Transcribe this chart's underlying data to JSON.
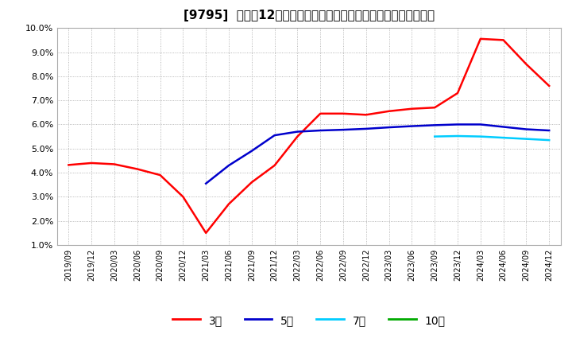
{
  "title": "[9795]  売上高12か月移動合計の対前年同期増減率の平均値の推移",
  "ylim": [
    0.01,
    0.1
  ],
  "yticks": [
    0.01,
    0.02,
    0.03,
    0.04,
    0.05,
    0.06,
    0.07,
    0.08,
    0.09,
    0.1
  ],
  "ytick_labels": [
    "1.0%",
    "2.0%",
    "3.0%",
    "4.0%",
    "5.0%",
    "6.0%",
    "7.0%",
    "8.0%",
    "9.0%",
    "10.0%"
  ],
  "x_labels": [
    "2019/09",
    "2019/12",
    "2020/03",
    "2020/06",
    "2020/09",
    "2020/12",
    "2021/03",
    "2021/06",
    "2021/09",
    "2021/12",
    "2022/03",
    "2022/06",
    "2022/09",
    "2022/12",
    "2023/03",
    "2023/06",
    "2023/09",
    "2023/12",
    "2024/03",
    "2024/06",
    "2024/09",
    "2024/12"
  ],
  "series_3y": {
    "label": "3年",
    "color": "#ff0000",
    "x": [
      0,
      1,
      2,
      3,
      4,
      5,
      6,
      7,
      8,
      9,
      10,
      11,
      12,
      13,
      14,
      15,
      16,
      17,
      18,
      19,
      20,
      21
    ],
    "y": [
      0.0432,
      0.044,
      0.0435,
      0.0415,
      0.039,
      0.03,
      0.015,
      0.027,
      0.036,
      0.043,
      0.055,
      0.0645,
      0.0645,
      0.064,
      0.0655,
      0.0665,
      0.067,
      0.073,
      0.0955,
      0.095,
      0.085,
      0.076
    ]
  },
  "series_5y": {
    "label": "5年",
    "color": "#0000cc",
    "x": [
      6,
      7,
      8,
      9,
      10,
      11,
      12,
      13,
      14,
      15,
      16,
      17,
      18,
      19,
      20,
      21
    ],
    "y": [
      0.0355,
      0.043,
      0.049,
      0.0555,
      0.057,
      0.0575,
      0.0578,
      0.0582,
      0.0588,
      0.0593,
      0.0597,
      0.06,
      0.06,
      0.059,
      0.058,
      0.0575
    ]
  },
  "series_7y": {
    "label": "7年",
    "color": "#00ccff",
    "x": [
      16,
      17,
      18,
      19,
      20,
      21
    ],
    "y": [
      0.055,
      0.0552,
      0.055,
      0.0545,
      0.054,
      0.0535
    ]
  },
  "series_10y": {
    "label": "10年",
    "color": "#00aa00",
    "x": [],
    "y": []
  },
  "background_color": "#ffffff",
  "grid_color": "#999999",
  "title_fontsize": 11,
  "legend_labels": [
    "3年",
    "5年",
    "7年",
    "10年"
  ],
  "legend_colors": [
    "#ff0000",
    "#0000cc",
    "#00ccff",
    "#00aa00"
  ]
}
